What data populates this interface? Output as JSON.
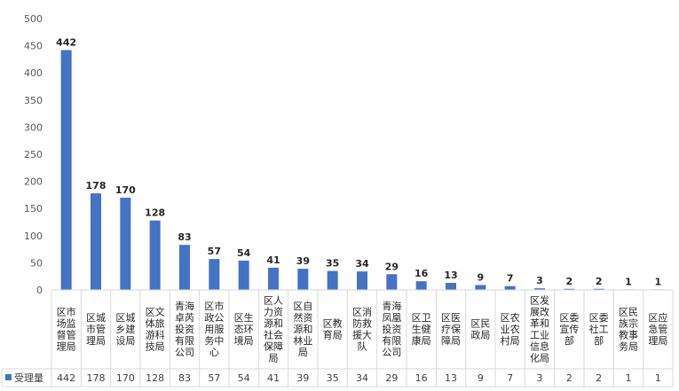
{
  "chart_data": {
    "type": "bar",
    "categories": [
      "区市场监督管理局",
      "区城市管理局",
      "区城乡建设局",
      "区文体旅游科技局",
      "青海卓芮投资有限公司",
      "区市政公用服务中心",
      "区生态环境局",
      "区人力资源和社会保障局",
      "区自然资源和林业局",
      "区教育局",
      "区消防救援大队",
      "青海凤凰投资有限公司",
      "区卫生健康局",
      "区医疗保障局",
      "区民政局",
      "区农业农村局",
      "区发展改革和工业信息化局",
      "区委宣传部",
      "区委社工部",
      "区民族宗教事务局",
      "区应急管理局"
    ],
    "category_lines": [
      [
        "区市",
        "场监",
        "督管",
        "理局"
      ],
      [
        "区城",
        "市管",
        "理局"
      ],
      [
        "区城",
        "乡建",
        "设局"
      ],
      [
        "区文",
        "体旅",
        "游科",
        "技局"
      ],
      [
        "青海",
        "卓芮",
        "投资",
        "有限",
        "公司"
      ],
      [
        "区市",
        "政公",
        "用服",
        "务中",
        "心"
      ],
      [
        "区生",
        "态环",
        "境局"
      ],
      [
        "区人",
        "力资",
        "源和",
        "社会",
        "保障",
        "局"
      ],
      [
        "区自",
        "然资",
        "源和",
        "林业",
        "局"
      ],
      [
        "区教",
        "育局"
      ],
      [
        "区消",
        "防救",
        "援大",
        "队"
      ],
      [
        "青海",
        "凤凰",
        "投资",
        "有限",
        "公司"
      ],
      [
        "区卫",
        "生健",
        "康局"
      ],
      [
        "区医",
        "疗保",
        "障局"
      ],
      [
        "区民",
        "政局"
      ],
      [
        "区农",
        "业农",
        "村局"
      ],
      [
        "区发",
        "展改",
        "革和",
        "工业",
        "信息",
        "化局"
      ],
      [
        "区委",
        "宣传",
        "部"
      ],
      [
        "区委",
        "社工",
        "部"
      ],
      [
        "区民",
        "族宗",
        "教事",
        "务局"
      ],
      [
        "区应",
        "急管",
        "理局"
      ]
    ],
    "series": [
      {
        "name": "受理量",
        "values": [
          442,
          178,
          170,
          128,
          83,
          57,
          54,
          41,
          39,
          35,
          34,
          29,
          16,
          13,
          9,
          7,
          3,
          2,
          2,
          1,
          1
        ]
      }
    ],
    "yticks": [
      "0",
      "50",
      "100",
      "150",
      "200",
      "250",
      "300",
      "350",
      "400",
      "450",
      "500"
    ],
    "ylim": [
      0,
      500
    ],
    "grid": false,
    "legend": "bottom-left",
    "color": "#4472C4",
    "title": "",
    "xlabel": "",
    "ylabel": ""
  }
}
